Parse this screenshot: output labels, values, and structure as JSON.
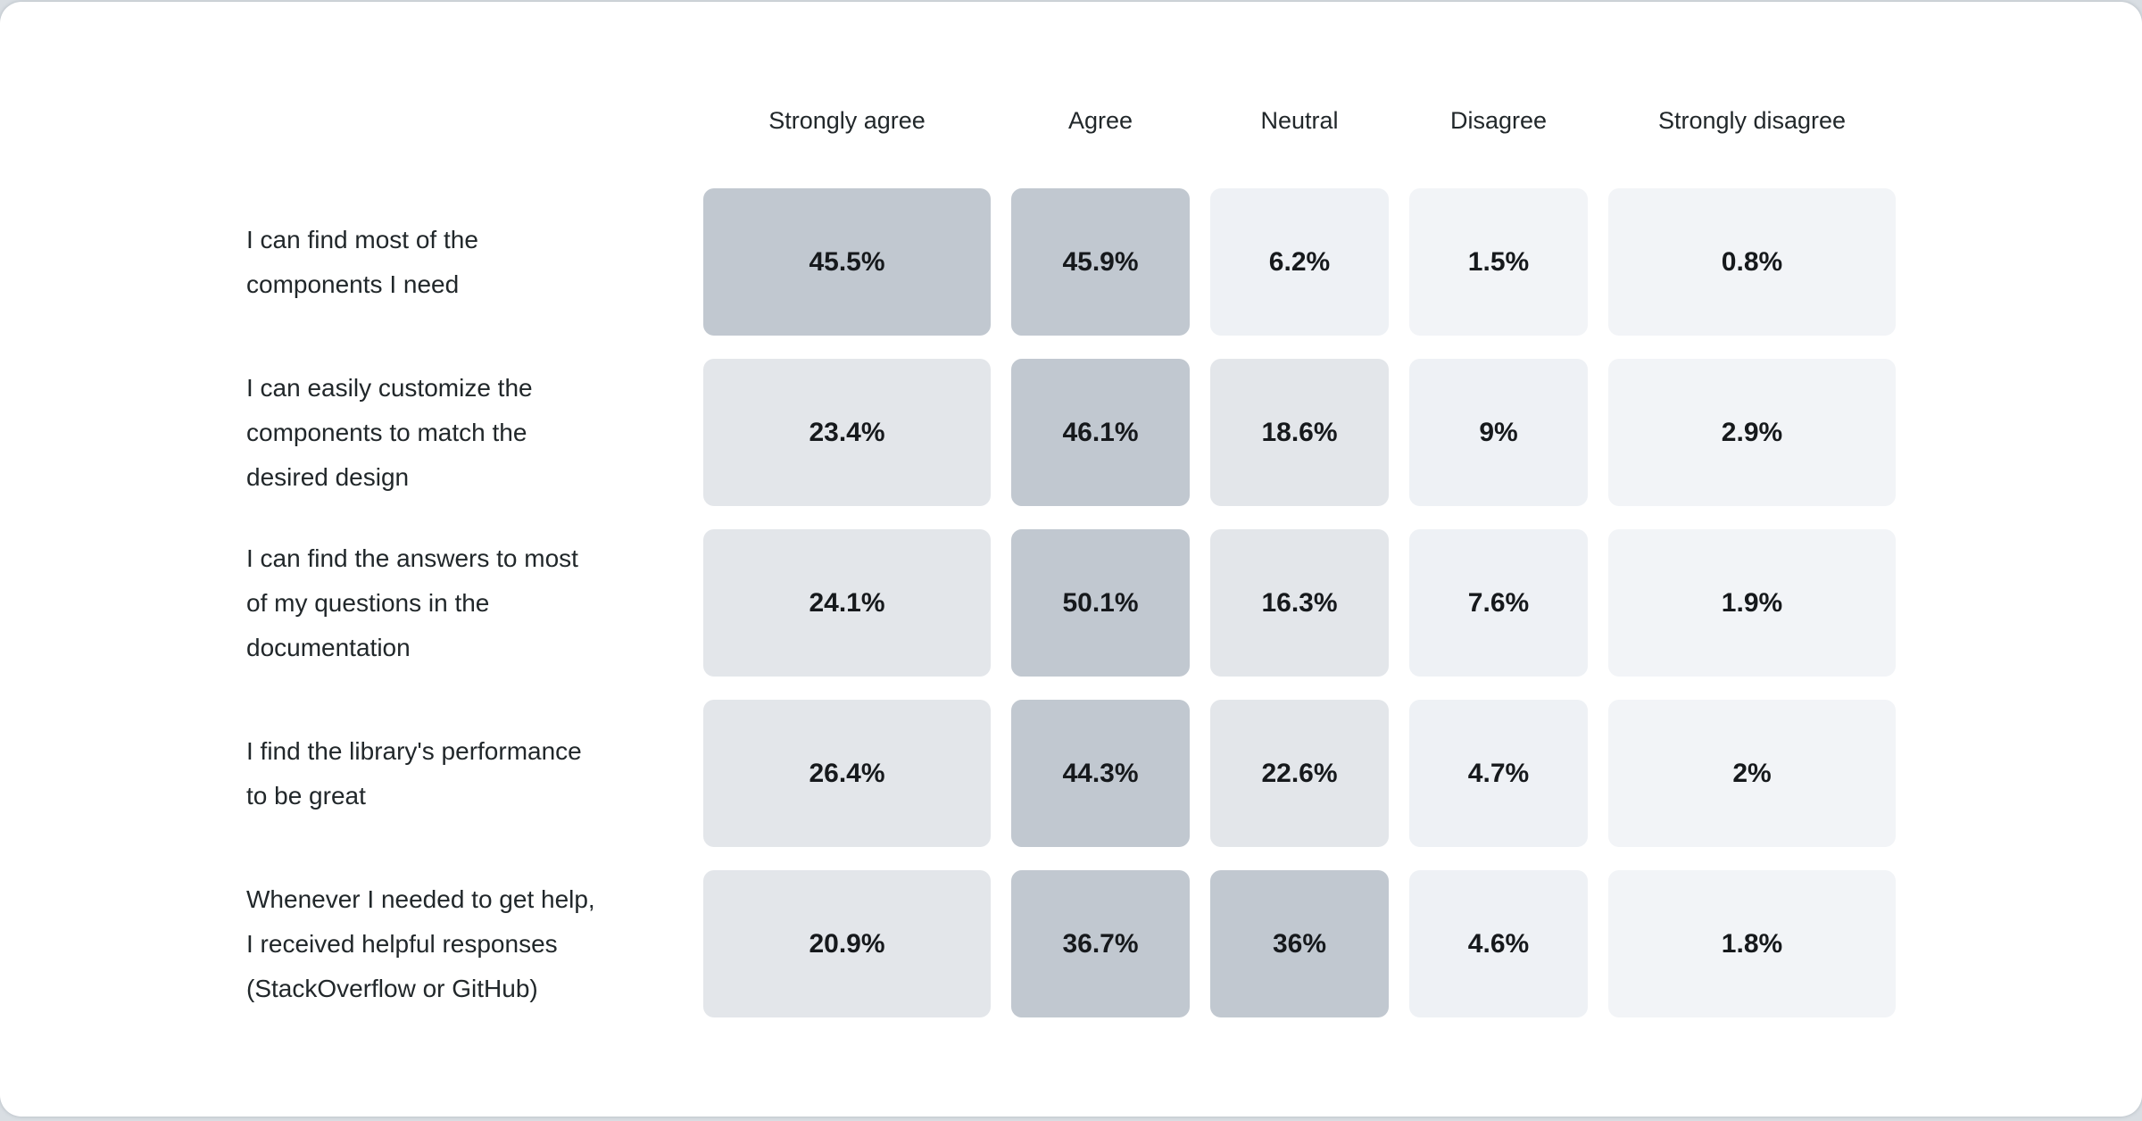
{
  "page": {
    "background_color": "#d9dee3",
    "card_background_color": "#ffffff"
  },
  "chart_data": {
    "type": "heatmap",
    "title": "",
    "columns": [
      "Strongly agree",
      "Agree",
      "Neutral",
      "Disagree",
      "Strongly disagree"
    ],
    "rows": [
      {
        "label": "I can find most of the\ncomponents I need",
        "values": [
          45.5,
          45.9,
          6.2,
          1.5,
          0.8
        ],
        "labels": [
          "45.5%",
          "45.9%",
          "6.2%",
          "1.5%",
          "0.8%"
        ]
      },
      {
        "label": "I can easily customize the\ncomponents to match the\ndesired design",
        "values": [
          23.4,
          46.1,
          18.6,
          9,
          2.9
        ],
        "labels": [
          "23.4%",
          "46.1%",
          "18.6%",
          "9%",
          "2.9%"
        ]
      },
      {
        "label": "I can find the answers to most\nof my questions in the\ndocumentation",
        "values": [
          24.1,
          50.1,
          16.3,
          7.6,
          1.9
        ],
        "labels": [
          "24.1%",
          "50.1%",
          "16.3%",
          "7.6%",
          "1.9%"
        ]
      },
      {
        "label": "I find the library's performance\nto be great",
        "values": [
          26.4,
          44.3,
          22.6,
          4.7,
          2
        ],
        "labels": [
          "26.4%",
          "44.3%",
          "22.6%",
          "4.7%",
          "2%"
        ]
      },
      {
        "label": "Whenever I needed to get help,\nI received helpful responses\n(StackOverflow or GitHub)",
        "values": [
          20.9,
          36.7,
          36,
          4.6,
          1.8
        ],
        "labels": [
          "20.9%",
          "36.7%",
          "36%",
          "4.6%",
          "1.8%"
        ]
      }
    ],
    "color_scale": {
      "note": "darker cell = higher percentage",
      "bins": [
        {
          "min": 30,
          "color": "#c1c8d0"
        },
        {
          "min": 12,
          "color": "#e3e6ea"
        },
        {
          "min": 4,
          "color": "#eef1f5"
        },
        {
          "min": 0,
          "color": "#f2f4f7"
        }
      ]
    }
  }
}
